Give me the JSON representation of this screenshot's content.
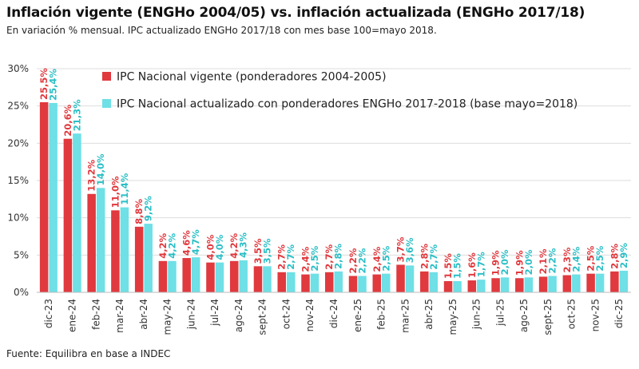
{
  "chart_data": {
    "type": "bar",
    "title": "Inflación vigente (ENGHo 2004/05) vs. inflación actualizada (ENGHo 2017/18)",
    "subtitle": "En variación % mensual. IPC actualizado ENGHo 2017/18 con mes base 100=mayo 2018.",
    "source": "Fuente: Equilibra en base a INDEC",
    "xlabel": "",
    "ylabel": "",
    "ylim": [
      0,
      30
    ],
    "yticks": [
      "0%",
      "5%",
      "10%",
      "15%",
      "20%",
      "25%",
      "30%"
    ],
    "grid": true,
    "legend_position": "top",
    "categories": [
      "dic-23",
      "ene-24",
      "feb-24",
      "mar-24",
      "abr-24",
      "may-24",
      "jun-24",
      "jul-24",
      "ago-24",
      "sept-24",
      "oct-24",
      "nov-24",
      "dic-24",
      "ene-25",
      "feb-25",
      "mar-25",
      "abr-25",
      "may-25",
      "jun-25",
      "jul-25",
      "ago-25",
      "sept-25",
      "oct-25",
      "nov-25",
      "dic-25"
    ],
    "series": [
      {
        "name": "IPC Nacional vigente (ponderadores 2004-2005)",
        "color": "#e0393e",
        "values": [
          25.5,
          20.6,
          13.2,
          11.0,
          8.8,
          4.2,
          4.6,
          4.0,
          4.2,
          3.5,
          2.7,
          2.4,
          2.7,
          2.2,
          2.4,
          3.7,
          2.8,
          1.5,
          1.6,
          1.9,
          1.9,
          2.1,
          2.3,
          2.5,
          2.8
        ],
        "labels": [
          "25,5%",
          "20,6%",
          "13,2%",
          "11,0%",
          "8,8%",
          "4,2%",
          "4,6%",
          "4,0%",
          "4,2%",
          "3,5%",
          "2,7%",
          "2,4%",
          "2,7%",
          "2,2%",
          "2,4%",
          "3,7%",
          "2,8%",
          "1,5%",
          "1,6%",
          "1,9%",
          "1,9%",
          "2,1%",
          "2,3%",
          "2,5%",
          "2,8%"
        ]
      },
      {
        "name": "IPC Nacional actualizado con ponderadores ENGHo 2017-2018 (base mayo=2018)",
        "color": "#6ee0e6",
        "label_color": "#2bbfc6",
        "values": [
          25.4,
          21.3,
          14.0,
          11.4,
          9.2,
          4.2,
          4.7,
          4.0,
          4.3,
          3.5,
          2.7,
          2.5,
          2.8,
          2.2,
          2.5,
          3.6,
          2.7,
          1.5,
          1.7,
          2.0,
          2.0,
          2.2,
          2.4,
          2.5,
          2.9
        ],
        "labels": [
          "25,4%",
          "21,3%",
          "14,0%",
          "11,4%",
          "9,2%",
          "4,2%",
          "4,7%",
          "4,0%",
          "4,3%",
          "3,5%",
          "2,7%",
          "2,5%",
          "2,8%",
          "2,2%",
          "2,5%",
          "3,6%",
          "2,7%",
          "1,5%",
          "1,7%",
          "2,0%",
          "2,0%",
          "2,2%",
          "2,4%",
          "2,5%",
          "2,9%"
        ]
      }
    ]
  }
}
